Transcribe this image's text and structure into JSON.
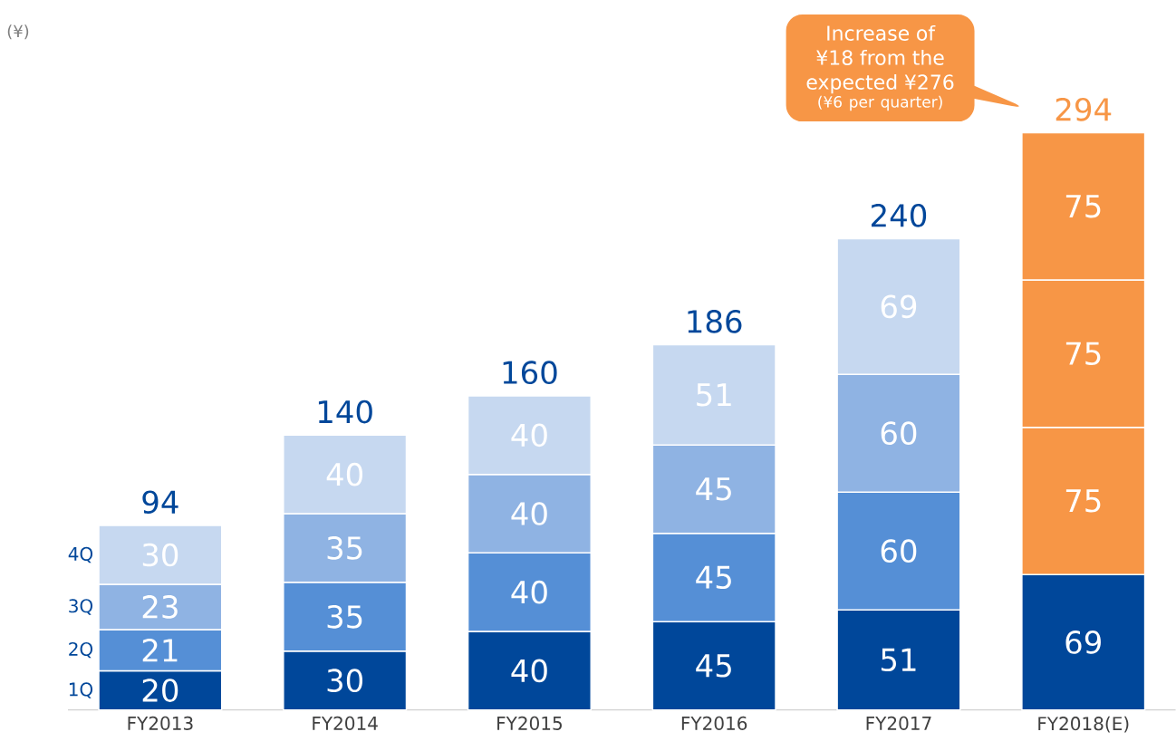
{
  "chart_data": {
    "type": "bar",
    "stacked": true,
    "categories": [
      "FY2013",
      "FY2014",
      "FY2015",
      "FY2016",
      "FY2017",
      "FY2018(E)"
    ],
    "series": [
      {
        "name": "1Q",
        "color": "#00479a",
        "values": [
          20,
          30,
          40,
          45,
          51,
          69
        ]
      },
      {
        "name": "2Q",
        "colors": [
          "#558fd6",
          "#558fd6",
          "#558fd6",
          "#558fd6",
          "#558fd6",
          "#f79646"
        ],
        "values": [
          21,
          35,
          40,
          45,
          60,
          75
        ]
      },
      {
        "name": "3Q",
        "colors": [
          "#8fb3e3",
          "#8fb3e3",
          "#8fb3e3",
          "#8fb3e3",
          "#8fb3e3",
          "#f79646"
        ],
        "values": [
          23,
          35,
          40,
          45,
          60,
          75
        ]
      },
      {
        "name": "4Q",
        "colors": [
          "#c6d8f0",
          "#c6d8f0",
          "#c6d8f0",
          "#c6d8f0",
          "#c6d8f0",
          "#f79646"
        ],
        "values": [
          30,
          40,
          40,
          51,
          69,
          75
        ]
      }
    ],
    "data_labels": true,
    "totals": [
      "94",
      "140",
      "160",
      "186",
      "240",
      "294"
    ],
    "legend": false,
    "annotations": [
      "(¥)",
      "Increase of ¥18 from the expected ¥276",
      "(¥6 per quarter)"
    ]
  }
}
